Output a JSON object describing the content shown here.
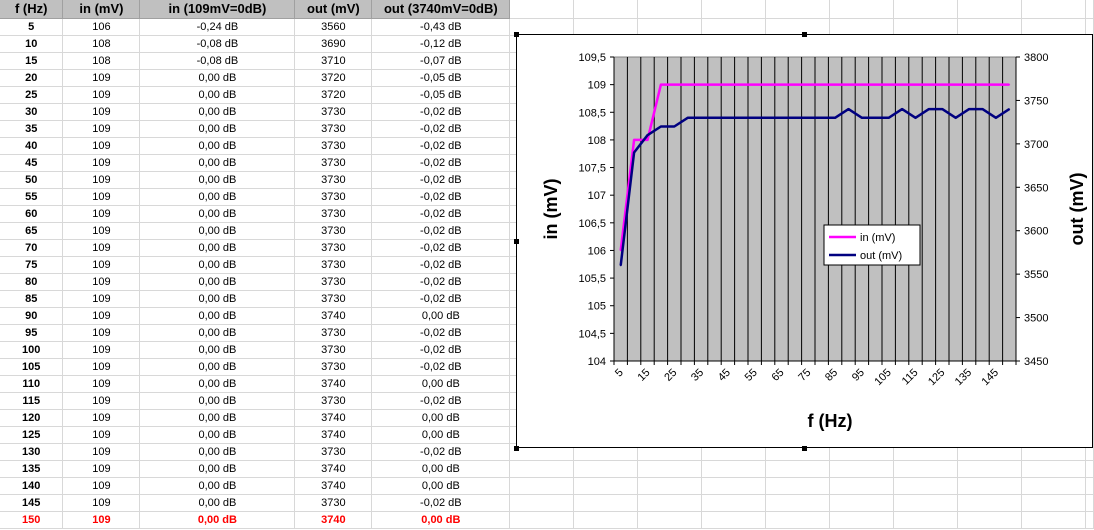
{
  "table": {
    "headers": [
      "f (Hz)",
      "in (mV)",
      "in (109mV=0dB)",
      "out (mV)",
      "out (3740mV=0dB)"
    ],
    "rows": [
      [
        "5",
        "106",
        "-0,24 dB",
        "3560",
        "-0,43 dB"
      ],
      [
        "10",
        "108",
        "-0,08 dB",
        "3690",
        "-0,12 dB"
      ],
      [
        "15",
        "108",
        "-0,08 dB",
        "3710",
        "-0,07 dB"
      ],
      [
        "20",
        "109",
        "0,00 dB",
        "3720",
        "-0,05 dB"
      ],
      [
        "25",
        "109",
        "0,00 dB",
        "3720",
        "-0,05 dB"
      ],
      [
        "30",
        "109",
        "0,00 dB",
        "3730",
        "-0,02 dB"
      ],
      [
        "35",
        "109",
        "0,00 dB",
        "3730",
        "-0,02 dB"
      ],
      [
        "40",
        "109",
        "0,00 dB",
        "3730",
        "-0,02 dB"
      ],
      [
        "45",
        "109",
        "0,00 dB",
        "3730",
        "-0,02 dB"
      ],
      [
        "50",
        "109",
        "0,00 dB",
        "3730",
        "-0,02 dB"
      ],
      [
        "55",
        "109",
        "0,00 dB",
        "3730",
        "-0,02 dB"
      ],
      [
        "60",
        "109",
        "0,00 dB",
        "3730",
        "-0,02 dB"
      ],
      [
        "65",
        "109",
        "0,00 dB",
        "3730",
        "-0,02 dB"
      ],
      [
        "70",
        "109",
        "0,00 dB",
        "3730",
        "-0,02 dB"
      ],
      [
        "75",
        "109",
        "0,00 dB",
        "3730",
        "-0,02 dB"
      ],
      [
        "80",
        "109",
        "0,00 dB",
        "3730",
        "-0,02 dB"
      ],
      [
        "85",
        "109",
        "0,00 dB",
        "3730",
        "-0,02 dB"
      ],
      [
        "90",
        "109",
        "0,00 dB",
        "3740",
        "0,00 dB"
      ],
      [
        "95",
        "109",
        "0,00 dB",
        "3730",
        "-0,02 dB"
      ],
      [
        "100",
        "109",
        "0,00 dB",
        "3730",
        "-0,02 dB"
      ],
      [
        "105",
        "109",
        "0,00 dB",
        "3730",
        "-0,02 dB"
      ],
      [
        "110",
        "109",
        "0,00 dB",
        "3740",
        "0,00 dB"
      ],
      [
        "115",
        "109",
        "0,00 dB",
        "3730",
        "-0,02 dB"
      ],
      [
        "120",
        "109",
        "0,00 dB",
        "3740",
        "0,00 dB"
      ],
      [
        "125",
        "109",
        "0,00 dB",
        "3740",
        "0,00 dB"
      ],
      [
        "130",
        "109",
        "0,00 dB",
        "3730",
        "-0,02 dB"
      ],
      [
        "135",
        "109",
        "0,00 dB",
        "3740",
        "0,00 dB"
      ],
      [
        "140",
        "109",
        "0,00 dB",
        "3740",
        "0,00 dB"
      ],
      [
        "145",
        "109",
        "0,00 dB",
        "3730",
        "-0,02 dB"
      ],
      [
        "150",
        "109",
        "0,00 dB",
        "3740",
        "0,00 dB"
      ]
    ]
  },
  "chart_data": {
    "type": "line",
    "xlabel": "f (Hz)",
    "ylabel": "in (mV)",
    "y2label": "out (mV)",
    "x": [
      5,
      10,
      15,
      20,
      25,
      30,
      35,
      40,
      45,
      50,
      55,
      60,
      65,
      70,
      75,
      80,
      85,
      90,
      95,
      100,
      105,
      110,
      115,
      120,
      125,
      130,
      135,
      140,
      145,
      150
    ],
    "x_tick_labels": [
      "5",
      "15",
      "25",
      "35",
      "45",
      "55",
      "65",
      "75",
      "85",
      "95",
      "105",
      "115",
      "125",
      "135",
      "145"
    ],
    "ylim": [
      104,
      109.5
    ],
    "y_ticks": [
      "104",
      "104,5",
      "105",
      "105,5",
      "106",
      "106,5",
      "107",
      "107,5",
      "108",
      "108,5",
      "109",
      "109,5"
    ],
    "y2lim": [
      3450,
      3800
    ],
    "y2_ticks": [
      "3450",
      "3500",
      "3550",
      "3600",
      "3650",
      "3700",
      "3750",
      "3800"
    ],
    "grid": "vertical",
    "legend_position": "center-right",
    "plot_background": "#c0c0c0",
    "series": [
      {
        "name": "in (mV)",
        "axis": "left",
        "color": "#ff00ff",
        "values": [
          106,
          108,
          108,
          109,
          109,
          109,
          109,
          109,
          109,
          109,
          109,
          109,
          109,
          109,
          109,
          109,
          109,
          109,
          109,
          109,
          109,
          109,
          109,
          109,
          109,
          109,
          109,
          109,
          109,
          109
        ]
      },
      {
        "name": "out (mV)",
        "axis": "right",
        "color": "#000080",
        "values": [
          3560,
          3690,
          3710,
          3720,
          3720,
          3730,
          3730,
          3730,
          3730,
          3730,
          3730,
          3730,
          3730,
          3730,
          3730,
          3730,
          3730,
          3740,
          3730,
          3730,
          3730,
          3740,
          3730,
          3740,
          3740,
          3730,
          3740,
          3740,
          3730,
          3740
        ]
      }
    ]
  }
}
